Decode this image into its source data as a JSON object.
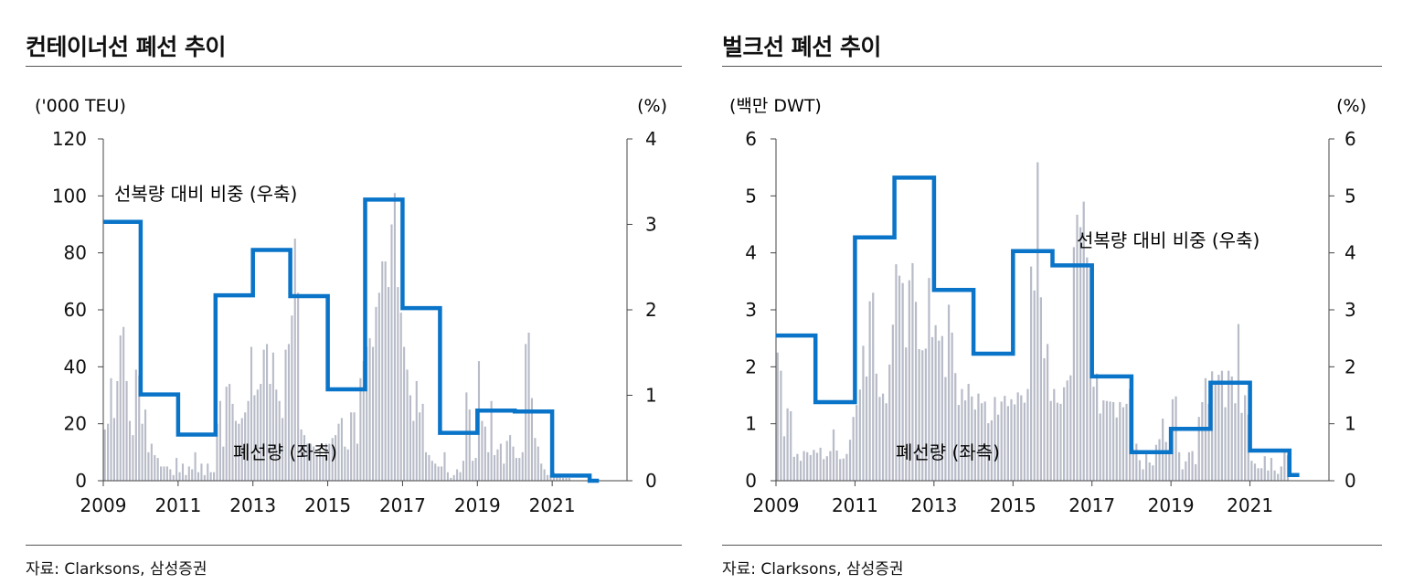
{
  "charts": [
    {
      "title": "컨테이너선 폐선 추이",
      "source": "자료: Clarksons, 삼성증권",
      "left_unit": "('000 TEU)",
      "right_unit": "(%)",
      "left_ticks": [
        "120",
        "100",
        "80",
        "60",
        "40",
        "20",
        "0"
      ],
      "right_ticks": [
        "4",
        "3",
        "2",
        "1",
        "0"
      ],
      "x_ticks": [
        "2009",
        "2011",
        "2013",
        "2015",
        "2017",
        "2019",
        "2021"
      ],
      "line_label": "선복량 대비 비중 (우축)",
      "bar_label": "폐선량 (좌측)"
    },
    {
      "title": "벌크선 폐선 추이",
      "source": "자료: Clarksons, 삼성증권",
      "left_unit": "(백만 DWT)",
      "right_unit": "(%)",
      "left_ticks": [
        "6",
        "5",
        "4",
        "3",
        "2",
        "1",
        "0"
      ],
      "right_ticks": [
        "6",
        "5",
        "4",
        "3",
        "2",
        "1",
        "0"
      ],
      "x_ticks": [
        "2009",
        "2011",
        "2013",
        "2015",
        "2017",
        "2019",
        "2021"
      ],
      "line_label": "선복량 대비 비중 (우축)",
      "bar_label": "폐선량 (좌측)"
    }
  ],
  "chart_data": [
    {
      "type": "bar+line",
      "title": "컨테이너선 폐선 추이",
      "left_axis": {
        "label": "('000 TEU)",
        "range": [
          0,
          120
        ]
      },
      "right_axis": {
        "label": "(%)",
        "range": [
          0,
          4
        ]
      },
      "x_range": [
        2009,
        2023
      ],
      "series": [
        {
          "name": "폐선량 (좌측)",
          "axis": "left",
          "kind": "monthly_bars",
          "start": 2009,
          "step_months": 1,
          "values": [
            18,
            20,
            36,
            22,
            35,
            51,
            54,
            35,
            21,
            16,
            39,
            37,
            20,
            25,
            10,
            13,
            9,
            8,
            5,
            5,
            5,
            4,
            2,
            8,
            3,
            6,
            2,
            5,
            4,
            10,
            3,
            6,
            2,
            6,
            3,
            3,
            20,
            28,
            12,
            33,
            34,
            27,
            21,
            20,
            22,
            24,
            28,
            47,
            30,
            32,
            34,
            46,
            48,
            34,
            45,
            32,
            28,
            22,
            46,
            48,
            58,
            85,
            66,
            18,
            16,
            13,
            13,
            12,
            9,
            11,
            9,
            13,
            13,
            15,
            16,
            20,
            22,
            12,
            11,
            24,
            24,
            13,
            36,
            42,
            47,
            50,
            47,
            61,
            66,
            77,
            77,
            68,
            90,
            101,
            68,
            59,
            47,
            39,
            30,
            21,
            35,
            24,
            27,
            10,
            9,
            7,
            6,
            5,
            5,
            10,
            3,
            1,
            2,
            4,
            3,
            7,
            31,
            25,
            7,
            8,
            42,
            21,
            19,
            10,
            28,
            9,
            11,
            13,
            6,
            14,
            16,
            12,
            8,
            8,
            10,
            48,
            52,
            29,
            15,
            12,
            6,
            4,
            2,
            2,
            3,
            2,
            2,
            1,
            1,
            1,
            0,
            0,
            0
          ]
        },
        {
          "name": "선복량 대비 비중 (우축)",
          "axis": "right",
          "kind": "annual_step",
          "steps": [
            {
              "from": 2009,
              "to": 2010,
              "value": 3.03
            },
            {
              "from": 2010,
              "to": 2011,
              "value": 1.01
            },
            {
              "from": 2011,
              "to": 2012,
              "value": 0.54
            },
            {
              "from": 2012,
              "to": 2013,
              "value": 2.17
            },
            {
              "from": 2013,
              "to": 2014,
              "value": 2.7
            },
            {
              "from": 2014,
              "to": 2015,
              "value": 2.16
            },
            {
              "from": 2015,
              "to": 2016,
              "value": 1.07
            },
            {
              "from": 2016,
              "to": 2017,
              "value": 3.29
            },
            {
              "from": 2017,
              "to": 2018,
              "value": 2.02
            },
            {
              "from": 2018,
              "to": 2019,
              "value": 0.56
            },
            {
              "from": 2019,
              "to": 2020,
              "value": 0.82
            },
            {
              "from": 2020,
              "to": 2021,
              "value": 0.81
            },
            {
              "from": 2021,
              "to": 2022,
              "value": 0.06
            },
            {
              "from": 2022,
              "to": 2022.25,
              "value": 0.0
            }
          ]
        }
      ]
    },
    {
      "type": "bar+line",
      "title": "벌크선 폐선 추이",
      "left_axis": {
        "label": "(백만 DWT)",
        "range": [
          0,
          6
        ]
      },
      "right_axis": {
        "label": "(%)",
        "range": [
          0,
          6
        ]
      },
      "x_range": [
        2009,
        2023
      ],
      "series": [
        {
          "name": "폐선량 (좌측)",
          "axis": "left",
          "kind": "monthly_bars",
          "start": 2009,
          "step_months": 1,
          "values": [
            2.25,
            1.93,
            0.78,
            1.27,
            1.22,
            0.42,
            0.47,
            0.35,
            0.52,
            0.5,
            0.45,
            0.54,
            0.49,
            0.58,
            0.38,
            0.43,
            0.52,
            0.9,
            0.53,
            0.38,
            0.39,
            0.47,
            0.72,
            1.12,
            1.33,
            1.6,
            2.37,
            1.83,
            3.15,
            3.3,
            1.88,
            1.47,
            1.53,
            1.36,
            2.04,
            2.74,
            3.8,
            3.6,
            3.47,
            2.34,
            3.52,
            3.82,
            3.14,
            2.31,
            2.29,
            2.32,
            3.56,
            2.52,
            2.73,
            2.46,
            2.54,
            1.82,
            3.09,
            2.6,
            1.89,
            1.33,
            1.61,
            1.41,
            1.7,
            1.48,
            1.25,
            1.53,
            1.36,
            1.39,
            1.01,
            1.06,
            1.47,
            1.16,
            1.39,
            1.49,
            1.31,
            1.43,
            1.34,
            1.55,
            1.5,
            1.37,
            1.61,
            3.76,
            3.34,
            5.59,
            3.22,
            2.15,
            2.4,
            1.4,
            1.61,
            1.37,
            1.35,
            1.64,
            1.76,
            1.85,
            4.1,
            4.67,
            4.45,
            4.9,
            3.92,
            3.73,
            1.65,
            1.88,
            1.18,
            1.41,
            1.4,
            1.39,
            1.38,
            1.11,
            1.38,
            1.29,
            1.35,
            1.61,
            0.55,
            0.65,
            0.36,
            0.2,
            0.5,
            0.32,
            0.27,
            0.63,
            0.73,
            1.09,
            0.68,
            0.54,
            1.43,
            1.48,
            0.5,
            0.2,
            0.34,
            0.5,
            0.52,
            0.29,
            1.12,
            1.38,
            1.8,
            1.35,
            1.92,
            1.75,
            1.86,
            1.93,
            1.29,
            1.93,
            1.83,
            1.36,
            2.75,
            1.19,
            1.5,
            1.16,
            0.35,
            0.3,
            0.22,
            0.22,
            0.43,
            0.18,
            0.4,
            0.18,
            0.12,
            0.25,
            0.5,
            0.45
          ]
        },
        {
          "name": "선복량 대비 비중 (우축)",
          "axis": "right",
          "kind": "annual_step",
          "steps": [
            {
              "from": 2009,
              "to": 2010,
              "value": 2.55
            },
            {
              "from": 2010,
              "to": 2011,
              "value": 1.38
            },
            {
              "from": 2011,
              "to": 2012,
              "value": 4.27
            },
            {
              "from": 2012,
              "to": 2013,
              "value": 5.32
            },
            {
              "from": 2013,
              "to": 2014,
              "value": 3.35
            },
            {
              "from": 2014,
              "to": 2015,
              "value": 2.23
            },
            {
              "from": 2015,
              "to": 2016,
              "value": 4.03
            },
            {
              "from": 2016,
              "to": 2017,
              "value": 3.78
            },
            {
              "from": 2017,
              "to": 2018,
              "value": 1.83
            },
            {
              "from": 2018,
              "to": 2019,
              "value": 0.5
            },
            {
              "from": 2019,
              "to": 2020,
              "value": 0.91
            },
            {
              "from": 2020,
              "to": 2021,
              "value": 1.72
            },
            {
              "from": 2021,
              "to": 2022,
              "value": 0.53
            },
            {
              "from": 2022,
              "to": 2022.25,
              "value": 0.1
            }
          ]
        }
      ]
    }
  ]
}
